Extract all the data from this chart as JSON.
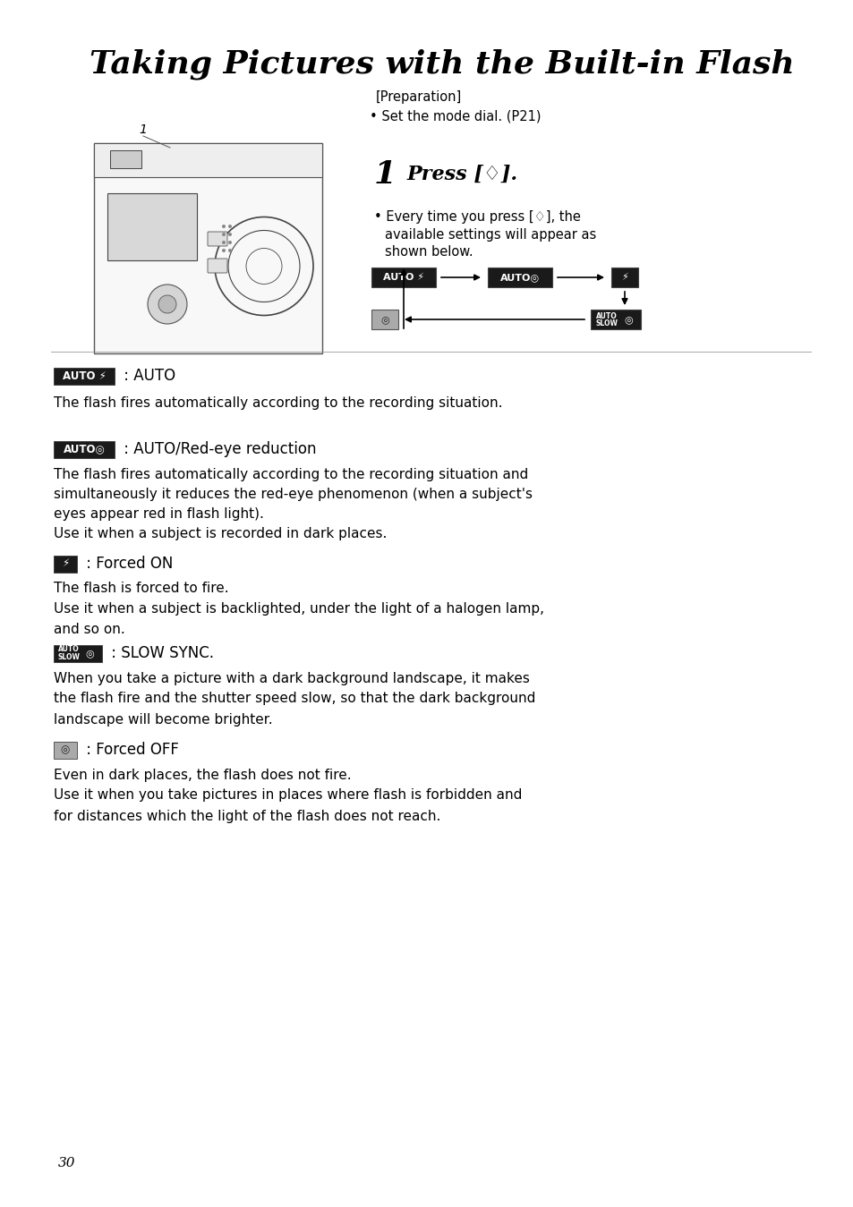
{
  "title": "Taking Pictures with the Built-in Flash",
  "bg_color": "#ffffff",
  "text_color": "#000000",
  "page_number": "30",
  "preparation_text": "[Preparation]",
  "preparation_bullet": "• Set the mode dial. (P21)",
  "step1_num": "1",
  "step1_text": "Press [♢].",
  "step1_bullet_line1": "• Every time you press [♢], the",
  "step1_bullet_line2": "available settings will appear as",
  "step1_bullet_line3": "shown below.",
  "diag_box1_text": "AUTO ⚡",
  "diag_box2_text": "AUTO◎",
  "diag_box3_text": "⚡",
  "diag_box4_text": "◎",
  "diag_box5_line1": "AUTO",
  "diag_box5_line2": "SLOW",
  "diag_box5_icon": "◎",
  "s1_label": "AUTO ⚡",
  "s1_heading": " : AUTO",
  "s1_body": "The flash fires automatically according to the recording situation.",
  "s2_label": "AUTO◎",
  "s2_heading": " : AUTO/Red-eye reduction",
  "s2_body_lines": [
    "The flash fires automatically according to the recording situation and",
    "simultaneously it reduces the red-eye phenomenon (when a subject's",
    "eyes appear red in flash light).",
    "Use it when a subject is recorded in dark places."
  ],
  "s3_label": "⚡",
  "s3_heading": " : Forced ON",
  "s3_body_lines": [
    "The flash is forced to fire.",
    "Use it when a subject is backlighted, under the light of a halogen lamp,",
    "and so on."
  ],
  "s4_label_l1": "AUTO",
  "s4_label_l2": "SLOW",
  "s4_label_icon": "◎",
  "s4_heading": " : SLOW SYNC.",
  "s4_body_lines": [
    "When you take a picture with a dark background landscape, it makes",
    "the flash fire and the shutter speed slow, so that the dark background",
    "landscape will become brighter."
  ],
  "s5_label": "◎",
  "s5_heading": " : Forced OFF",
  "s5_body_lines": [
    "Even in dark places, the flash does not fire.",
    "Use it when you take pictures in places where flash is forbidden and",
    "for distances which the light of the flash does not reach."
  ]
}
